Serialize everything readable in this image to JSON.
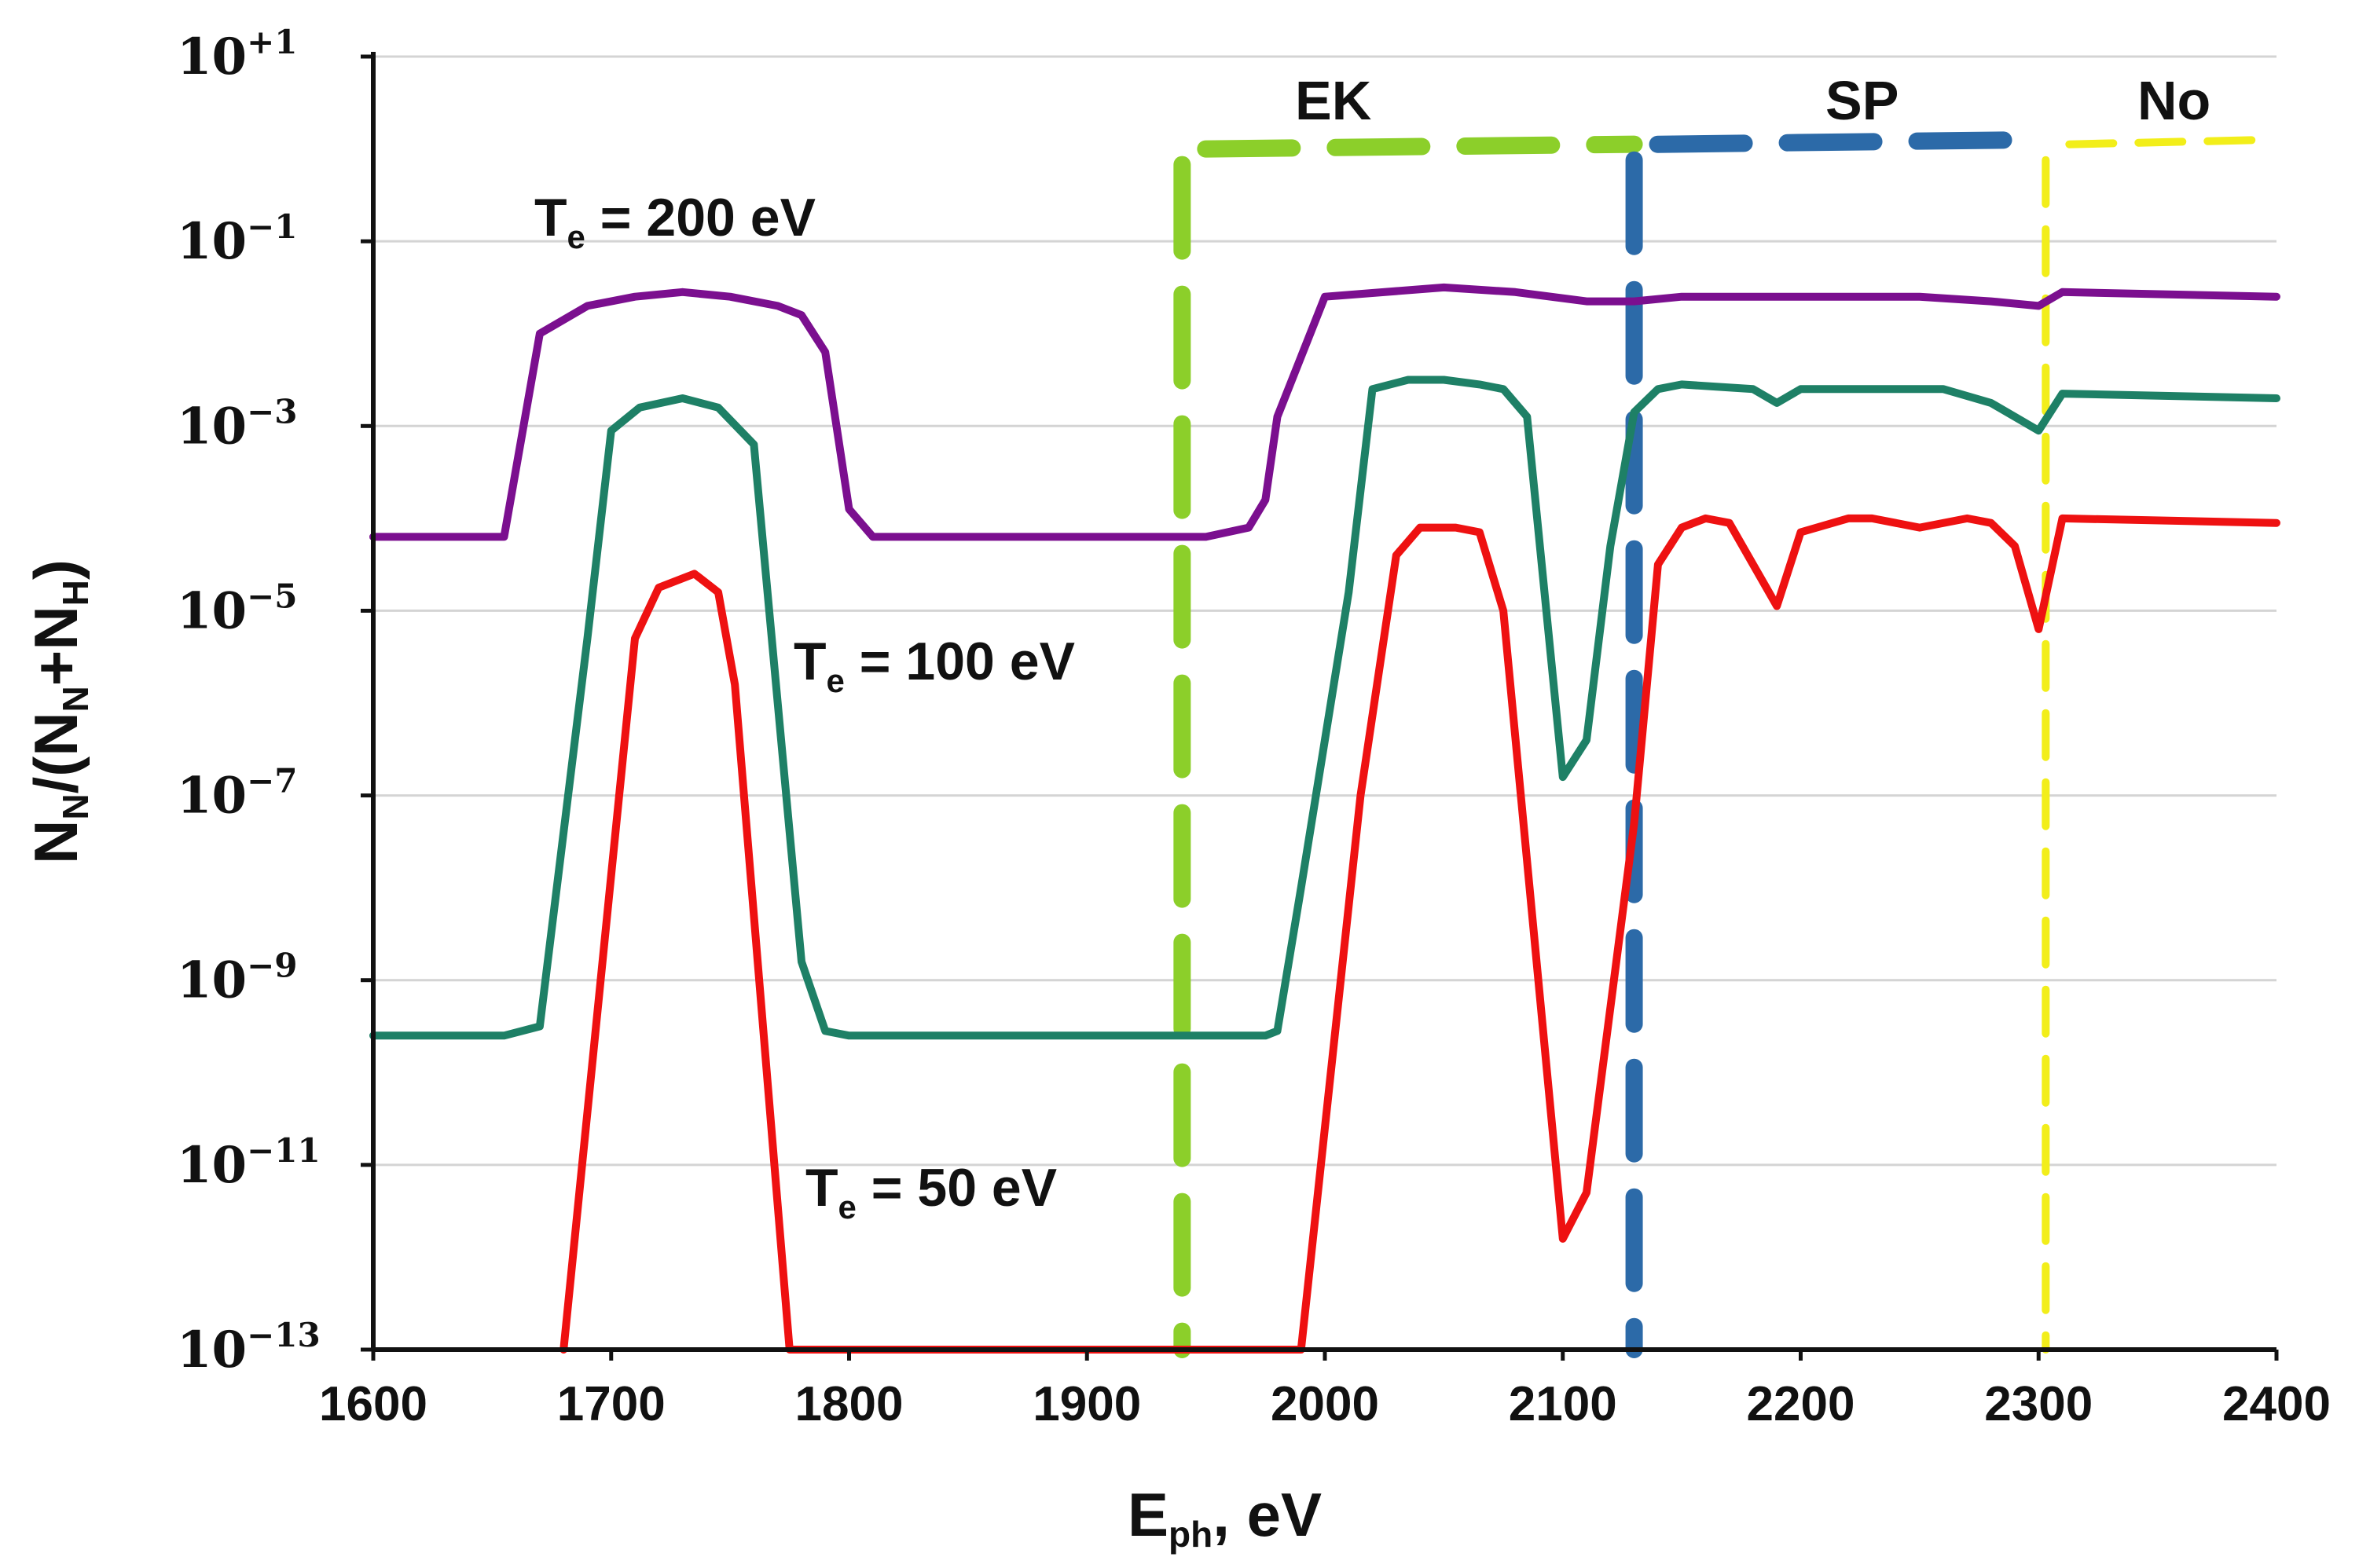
{
  "chart_data": {
    "type": "line",
    "title": "",
    "xlabel": {
      "main": "E",
      "sub": "ph",
      "unit": ", eV"
    },
    "ylabel": {
      "p1": "N",
      "s1": "N",
      "p2": "/(N",
      "s2": "N",
      "p3": "+N",
      "s3": "H",
      "p4": ")"
    },
    "xlim": [
      1600,
      2400
    ],
    "ylim_exponent": [
      -13,
      1
    ],
    "y_scale": "log10",
    "grid": true,
    "x_ticks": [
      "1600",
      "1700",
      "1800",
      "1900",
      "2000",
      "2100",
      "2200",
      "2300",
      "2400"
    ],
    "y_ticks": [
      {
        "exp": -13,
        "base": "10",
        "label": "−13"
      },
      {
        "exp": -11,
        "base": "10",
        "label": "−11"
      },
      {
        "exp": -9,
        "base": "10",
        "label": "−9"
      },
      {
        "exp": -7,
        "base": "10",
        "label": "−7"
      },
      {
        "exp": -5,
        "base": "10",
        "label": "−5"
      },
      {
        "exp": -3,
        "base": "10",
        "label": "−3"
      },
      {
        "exp": -1,
        "base": "10",
        "label": "−1"
      },
      {
        "exp": 1,
        "base": "10",
        "label": "+1"
      }
    ],
    "series": [
      {
        "name": "Te = 200 eV",
        "label_main": "T",
        "label_sub": "e",
        "label_rest": " = 200 eV",
        "color": "#7b0f8f",
        "x": [
          1600,
          1655,
          1670,
          1690,
          1710,
          1730,
          1750,
          1770,
          1780,
          1790,
          1800,
          1810,
          1900,
          1950,
          1968,
          1975,
          1980,
          2000,
          2050,
          2080,
          2110,
          2130,
          2150,
          2200,
          2250,
          2280,
          2300,
          2310,
          2400
        ],
        "logy": [
          -4.2,
          -4.2,
          -2.0,
          -1.7,
          -1.6,
          -1.55,
          -1.6,
          -1.7,
          -1.8,
          -2.2,
          -3.9,
          -4.2,
          -4.2,
          -4.2,
          -4.1,
          -3.8,
          -2.9,
          -1.6,
          -1.5,
          -1.55,
          -1.65,
          -1.65,
          -1.6,
          -1.6,
          -1.6,
          -1.65,
          -1.7,
          -1.55,
          -1.6
        ]
      },
      {
        "name": "Te = 100 eV",
        "label_main": "T",
        "label_sub": "e",
        "label_rest": " = 100 eV",
        "color": "#1e8066",
        "x": [
          1600,
          1655,
          1670,
          1690,
          1700,
          1712,
          1730,
          1745,
          1760,
          1780,
          1790,
          1800,
          1900,
          1975,
          1980,
          1990,
          2010,
          2020,
          2035,
          2050,
          2065,
          2075,
          2085,
          2100,
          2110,
          2120,
          2130,
          2140,
          2150,
          2180,
          2190,
          2200,
          2230,
          2260,
          2280,
          2300,
          2310,
          2400
        ],
        "logy": [
          -9.6,
          -9.6,
          -9.5,
          -5.3,
          -3.05,
          -2.8,
          -2.7,
          -2.8,
          -3.2,
          -8.8,
          -9.55,
          -9.6,
          -9.6,
          -9.6,
          -9.55,
          -8.0,
          -4.8,
          -2.6,
          -2.5,
          -2.5,
          -2.55,
          -2.6,
          -2.9,
          -6.8,
          -6.4,
          -4.3,
          -2.85,
          -2.6,
          -2.55,
          -2.6,
          -2.75,
          -2.6,
          -2.6,
          -2.6,
          -2.75,
          -3.05,
          -2.65,
          -2.7
        ]
      },
      {
        "name": "Te = 50 eV",
        "label_main": "T",
        "label_sub": "e",
        "label_rest": " = 50 eV",
        "color": "#ee1111",
        "x": [
          1680,
          1710,
          1720,
          1735,
          1745,
          1752,
          1775,
          1990,
          2015,
          2030,
          2040,
          2055,
          2065,
          2075,
          2100,
          2110,
          2130,
          2140,
          2150,
          2160,
          2170,
          2190,
          2200,
          2220,
          2230,
          2250,
          2270,
          2280,
          2290,
          2300,
          2310,
          2400
        ],
        "logy": [
          -13.0,
          -5.3,
          -4.75,
          -4.6,
          -4.8,
          -5.8,
          -13.0,
          -13.0,
          -7.0,
          -4.4,
          -4.1,
          -4.1,
          -4.15,
          -5.0,
          -11.8,
          -11.3,
          -7.3,
          -4.5,
          -4.1,
          -4.0,
          -4.05,
          -4.95,
          -4.15,
          -4.0,
          -4.0,
          -4.1,
          -4.0,
          -4.05,
          -4.3,
          -5.2,
          -4.0,
          -4.05
        ]
      }
    ],
    "regions": [
      {
        "label": "EK",
        "color": "#8ccf2a",
        "x_start": 1940,
        "x_end": 2130,
        "top_logy": 0.0
      },
      {
        "label": "SP",
        "color": "#2c6aa8",
        "x_start": 2130,
        "x_end": 2303,
        "top_logy": 0.05
      },
      {
        "label": "No",
        "color": "#f2ee1a",
        "x_start": 2303,
        "x_end": 2400,
        "top_logy": 0.05
      }
    ]
  }
}
